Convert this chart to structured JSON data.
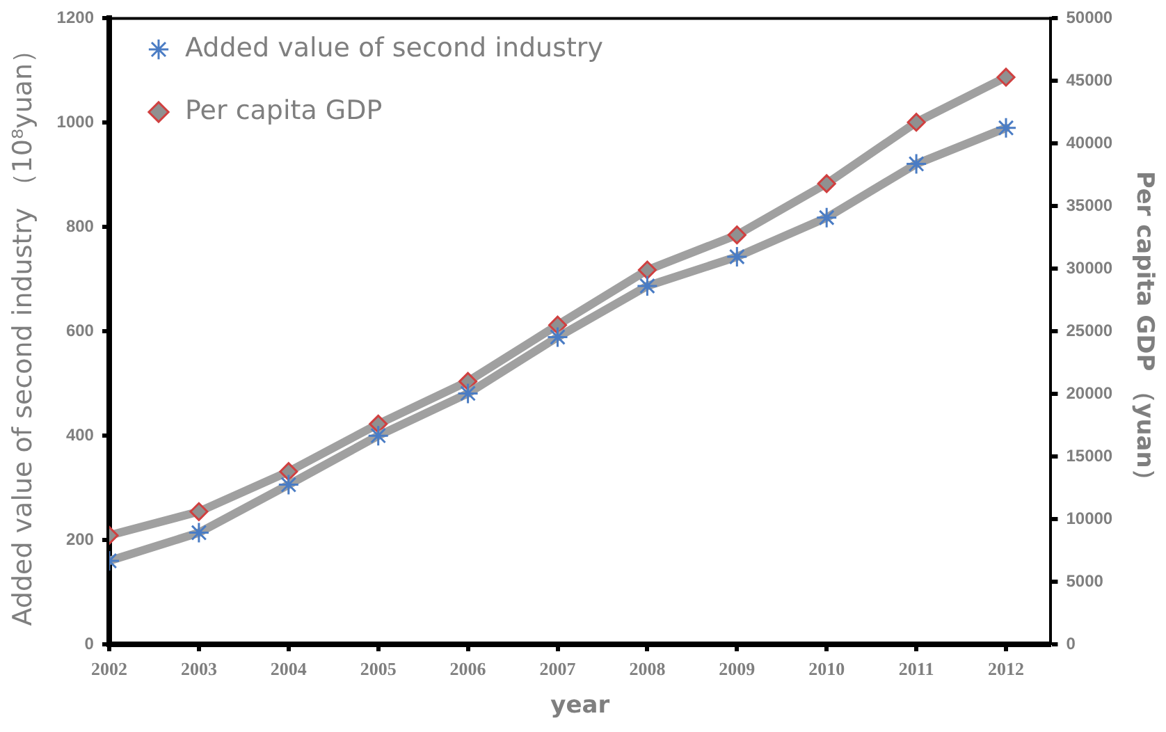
{
  "chart_data": {
    "type": "line",
    "x": [
      2002,
      2003,
      2004,
      2005,
      2006,
      2007,
      2008,
      2009,
      2010,
      2011,
      2012
    ],
    "xlim": [
      2002,
      2012.5
    ],
    "xticks": [
      2002,
      2003,
      2004,
      2005,
      2006,
      2007,
      2008,
      2009,
      2010,
      2011,
      2012
    ],
    "xlabel": "year",
    "ylabel": "Added value of second industry （10⁸yuan）",
    "y2label": "Per capita GDP （yuan）",
    "ylim": [
      0,
      1200
    ],
    "yticks": [
      0,
      200,
      400,
      600,
      800,
      1000,
      1200
    ],
    "y2lim": [
      0,
      50000
    ],
    "y2ticks": [
      0,
      5000,
      10000,
      15000,
      20000,
      25000,
      30000,
      35000,
      40000,
      45000,
      50000
    ],
    "grid": false,
    "legend": "top left",
    "line_style": "solid",
    "series": [
      {
        "name": "Added value of second industry",
        "color": "#a0a0a0",
        "marker": "cross",
        "values": [
          160,
          214,
          306,
          400,
          481,
          589,
          687,
          743,
          818,
          921,
          990
        ]
      },
      {
        "name": "Per capita GDP",
        "color": "#a0a0a0",
        "marker": "diamond",
        "axis": "y2",
        "values": [
          8700,
          10600,
          13800,
          17600,
          21000,
          25500,
          29900,
          32700,
          36800,
          41700,
          45300
        ]
      }
    ]
  }
}
